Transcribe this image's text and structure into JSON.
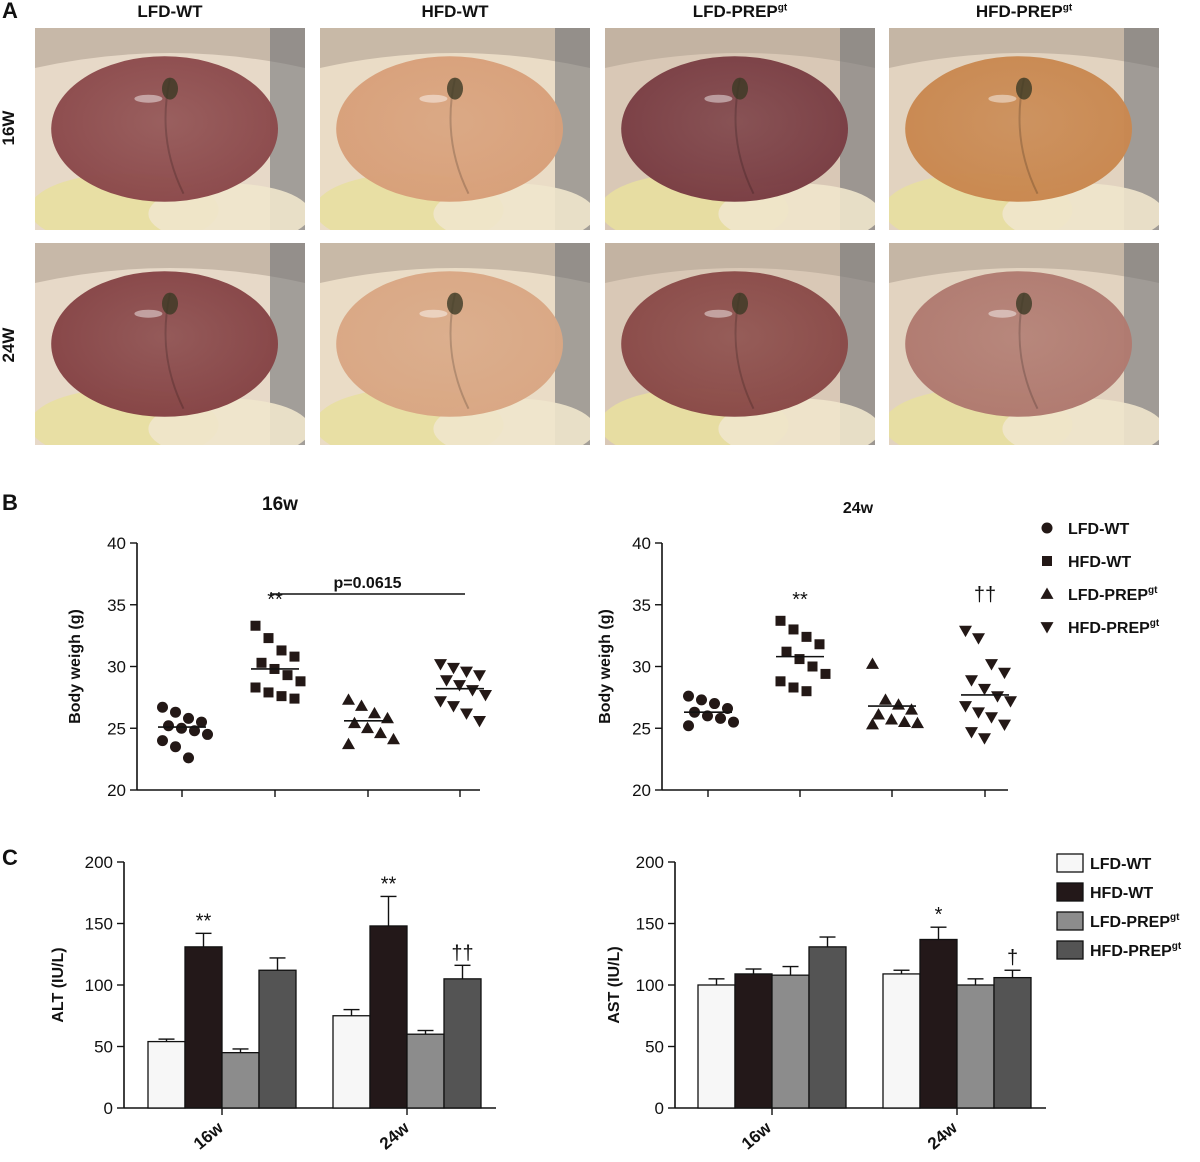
{
  "panels": {
    "A": "A",
    "B": "B",
    "C": "C"
  },
  "photo_grid": {
    "columns": [
      "LFD-WT",
      "HFD-WT",
      "LFD-PREP",
      "HFD-PREP"
    ],
    "column_superscripts": [
      "",
      "",
      "gt",
      "gt"
    ],
    "rows": [
      "16W",
      "24W"
    ],
    "tints": [
      [
        "#8c4a4c",
        "#d8a07a",
        "#7a3e44",
        "#c98850"
      ],
      [
        "#864446",
        "#d9a784",
        "#8a4a48",
        "#b07a70"
      ]
    ],
    "surround_colors": [
      "#e7d9c8",
      "#eadcc6",
      "#d9c8b6",
      "#e2d3c0"
    ]
  },
  "legend": {
    "items": [
      {
        "label": "LFD-WT",
        "sup": "",
        "marker": "circle"
      },
      {
        "label": "HFD-WT",
        "sup": "",
        "marker": "square"
      },
      {
        "label": "LFD-PREP",
        "sup": "gt",
        "marker": "triangle-up"
      },
      {
        "label": "HFD-PREP",
        "sup": "gt",
        "marker": "triangle-down"
      }
    ],
    "bar_items": [
      {
        "label": "LFD-WT",
        "sup": "",
        "color": "#f7f7f7"
      },
      {
        "label": "HFD-WT",
        "sup": "",
        "color": "#231819"
      },
      {
        "label": "LFD-PREP",
        "sup": "gt",
        "color": "#8c8c8c"
      },
      {
        "label": "HFD-PREP",
        "sup": "gt",
        "color": "#545454"
      }
    ]
  },
  "chart_data": [
    {
      "type": "scatter",
      "title": "16w",
      "ylabel": "Body weigh (g)",
      "ylim": [
        20,
        40
      ],
      "yticks": [
        20,
        25,
        30,
        35,
        40
      ],
      "groups": [
        "LFD-WT",
        "HFD-WT",
        "LFD-PREP",
        "HFD-PREP"
      ],
      "markers": [
        "circle",
        "square",
        "triangle-up",
        "triangle-down"
      ],
      "points": [
        [
          26.7,
          26.3,
          25.8,
          25.5,
          25.2,
          25.0,
          24.8,
          24.5,
          24.0,
          23.5,
          22.6
        ],
        [
          33.3,
          32.3,
          31.3,
          30.8,
          30.3,
          29.8,
          29.3,
          28.8,
          28.3,
          27.9,
          27.6,
          27.4
        ],
        [
          27.3,
          26.8,
          26.2,
          25.8,
          25.4,
          25.0,
          24.6,
          24.1,
          23.7
        ],
        [
          30.2,
          29.9,
          29.6,
          29.3,
          28.9,
          28.5,
          28.1,
          27.7,
          27.2,
          26.8,
          26.2,
          25.6
        ]
      ],
      "means": [
        25.1,
        29.8,
        25.6,
        28.2
      ],
      "annotations": [
        {
          "group": 1,
          "text": "**",
          "y": 34.9
        },
        {
          "bracket": [
            1,
            3
          ],
          "text": "p=0.0615",
          "y": 37.0
        }
      ]
    },
    {
      "type": "scatter",
      "title": "24w",
      "ylabel": "Body weigh (g)",
      "ylim": [
        20,
        40
      ],
      "yticks": [
        20,
        25,
        30,
        35,
        40
      ],
      "groups": [
        "LFD-WT",
        "HFD-WT",
        "LFD-PREP",
        "HFD-PREP"
      ],
      "markers": [
        "circle",
        "square",
        "triangle-up",
        "triangle-down"
      ],
      "points": [
        [
          27.6,
          27.3,
          27.0,
          26.6,
          26.3,
          26.0,
          25.8,
          25.5,
          25.2
        ],
        [
          33.7,
          33.0,
          32.4,
          31.8,
          31.2,
          30.6,
          30.0,
          29.4,
          28.8,
          28.3,
          28.0
        ],
        [
          30.2,
          27.3,
          26.9,
          26.5,
          26.1,
          25.7,
          25.5,
          25.4,
          25.3
        ],
        [
          32.9,
          32.3,
          30.2,
          29.5,
          28.9,
          28.2,
          27.6,
          27.2,
          26.8,
          26.3,
          25.9,
          25.3,
          24.7,
          24.2
        ]
      ],
      "means": [
        26.3,
        30.8,
        26.8,
        27.7
      ],
      "annotations": [
        {
          "group": 1,
          "text": "**",
          "y": 34.9
        },
        {
          "group": 3,
          "text": "††",
          "y": 35.3
        }
      ]
    },
    {
      "type": "bar",
      "ylabel": "ALT (IU/L)",
      "ylim": [
        0,
        200
      ],
      "yticks": [
        0,
        50,
        100,
        150,
        200
      ],
      "categories": [
        "16w",
        "24w"
      ],
      "series": [
        {
          "name": "LFD-WT",
          "values": [
            54,
            75
          ],
          "errors": [
            2,
            5
          ]
        },
        {
          "name": "HFD-WT",
          "values": [
            131,
            148
          ],
          "errors": [
            11,
            24
          ]
        },
        {
          "name": "LFD-PREP",
          "values": [
            45,
            60
          ],
          "errors": [
            3,
            3
          ]
        },
        {
          "name": "HFD-PREP",
          "values": [
            112,
            105
          ],
          "errors": [
            10,
            11
          ]
        }
      ],
      "annotations": [
        {
          "category": 0,
          "series": 1,
          "text": "**"
        },
        {
          "category": 1,
          "series": 1,
          "text": "**"
        },
        {
          "category": 1,
          "series": 3,
          "text": "††"
        }
      ]
    },
    {
      "type": "bar",
      "ylabel": "AST (IU/L)",
      "ylim": [
        0,
        200
      ],
      "yticks": [
        0,
        50,
        100,
        150,
        200
      ],
      "categories": [
        "16w",
        "24w"
      ],
      "series": [
        {
          "name": "LFD-WT",
          "values": [
            100,
            109
          ],
          "errors": [
            5,
            3
          ]
        },
        {
          "name": "HFD-WT",
          "values": [
            109,
            137
          ],
          "errors": [
            4,
            10
          ]
        },
        {
          "name": "LFD-PREP",
          "values": [
            108,
            100
          ],
          "errors": [
            7,
            5
          ]
        },
        {
          "name": "HFD-PREP",
          "values": [
            131,
            106
          ],
          "errors": [
            8,
            6
          ]
        }
      ],
      "annotations": [
        {
          "category": 1,
          "series": 1,
          "text": "*"
        },
        {
          "category": 1,
          "series": 3,
          "text": "†"
        }
      ]
    }
  ]
}
